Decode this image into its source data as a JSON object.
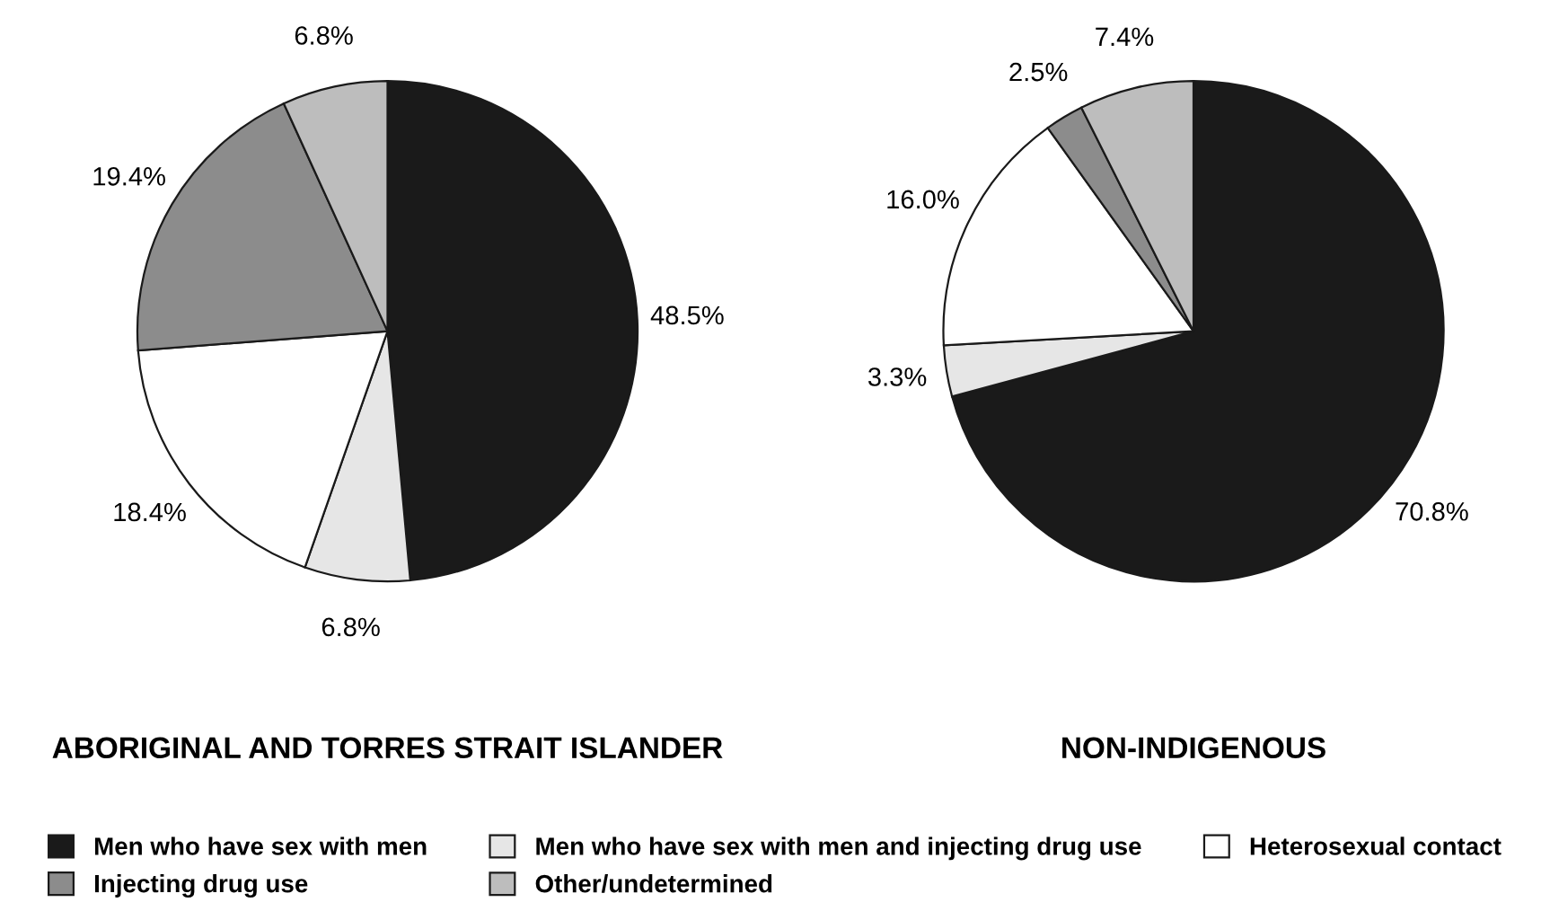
{
  "chart_data": [
    {
      "type": "pie",
      "title": "ABORIGINAL AND TORRES STRAIT ISLANDER",
      "categories": [
        "Men who have sex with men",
        "Men who have sex with men and injecting drug use",
        "Heterosexual contact",
        "Injecting drug use",
        "Other/undetermined"
      ],
      "values": [
        48.5,
        6.8,
        18.4,
        19.4,
        6.8
      ],
      "value_labels": [
        "48.5%",
        "6.8%",
        "18.4%",
        "19.4%",
        "6.8%"
      ],
      "colors": [
        "#1a1a1a",
        "#e6e6e6",
        "#ffffff",
        "#8c8c8c",
        "#bdbdbd"
      ],
      "legend": "bottom"
    },
    {
      "type": "pie",
      "title": "NON-INDIGENOUS",
      "categories": [
        null,
        null,
        null,
        null,
        null
      ],
      "values": [
        70.8,
        3.3,
        16.0,
        2.5,
        7.4
      ],
      "value_labels": [
        "70.8%",
        "3.3%",
        "16.0%",
        "2.5%",
        "7.4%"
      ],
      "colors": [
        "#1a1a1a",
        "#e6e6e6",
        "#ffffff",
        "#8c8c8c",
        "#bdbdbd"
      ]
    }
  ]
}
